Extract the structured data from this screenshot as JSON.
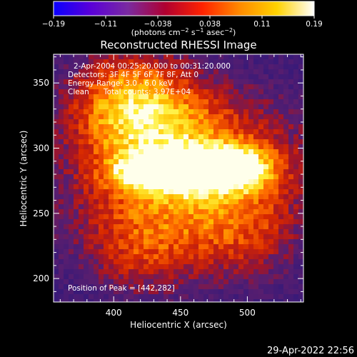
{
  "colorbar": {
    "ticks": [
      "−0.19",
      "−0.11",
      "−0.038",
      "0.038",
      "0.11",
      "0.19"
    ],
    "units_prefix": "(photons cm",
    "units_exp1": "−2",
    "units_mid": " s",
    "units_exp2": "−1",
    "units_mid2": " asec",
    "units_exp3": "−2",
    "units_suffix": ")",
    "colors": [
      "#0a00ff",
      "#5a00d8",
      "#7a2aa0",
      "#b00030",
      "#ff2200",
      "#ff8a00",
      "#ffd200",
      "#ffffff"
    ]
  },
  "chart_data": {
    "type": "heatmap",
    "title": "Reconstructed RHESSI Image",
    "xlabel": "Heliocentric X (arcsec)",
    "ylabel": "Heliocentric Y (arcsec)",
    "xlim": [
      355,
      542
    ],
    "ylim": [
      182,
      372
    ],
    "xticks": [
      400,
      450,
      500
    ],
    "yticks": [
      200,
      250,
      300,
      350
    ],
    "grid": false,
    "colorbar_range": [
      -0.19,
      0.19
    ],
    "peak": [
      442,
      282
    ],
    "annotations": {
      "line1": "2-Apr-2004 00:25:20.000 to 00:31:20.000",
      "line2": "Detectors: 3F 4F 5F 6F 7F 8F, Att 0",
      "line3": "Energy Range: 3.0 - 6.0 keV",
      "line4_a": "Clean",
      "line4_b": "Total counts: 3.97E+04",
      "peak_label": "Position of Peak = [442,282]"
    }
  },
  "footer": {
    "timestamp": "29-Apr-2022 22:56"
  }
}
